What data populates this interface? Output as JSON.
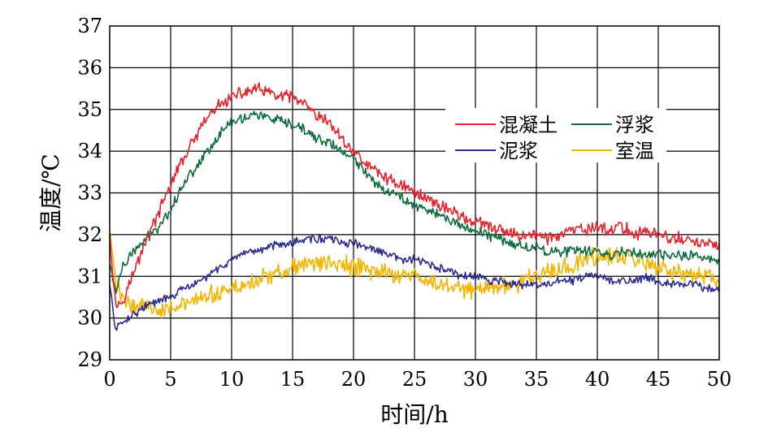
{
  "chart_data": {
    "type": "line",
    "xlabel": "时间/h",
    "ylabel": "温度/℃",
    "xlim": [
      0,
      50
    ],
    "ylim": [
      29,
      37
    ],
    "xticks": [
      "0",
      "5",
      "10",
      "15",
      "20",
      "25",
      "30",
      "35",
      "40",
      "45",
      "50"
    ],
    "yticks": [
      "29",
      "30",
      "31",
      "32",
      "33",
      "34",
      "35",
      "36",
      "37"
    ],
    "grid": true,
    "legend_position": "top-right",
    "noise_level": "high",
    "series": [
      {
        "name": "混凝土",
        "color": "#e8202a",
        "x": [
          0,
          0.5,
          1,
          2,
          3,
          4,
          5,
          6,
          7,
          8,
          9,
          10,
          11,
          12,
          13,
          14,
          15,
          16,
          17,
          18,
          19,
          20,
          21,
          22,
          23,
          24,
          25,
          26,
          27,
          28,
          29,
          30,
          31,
          32,
          33,
          34,
          35,
          36,
          37,
          38,
          39,
          40,
          41,
          42,
          43,
          44,
          45,
          46,
          47,
          48,
          49,
          50
        ],
        "values": [
          32.0,
          30.3,
          30.4,
          31.1,
          31.9,
          32.5,
          33.2,
          33.8,
          34.3,
          34.8,
          35.1,
          35.3,
          35.4,
          35.5,
          35.4,
          35.3,
          35.3,
          35.1,
          34.8,
          34.7,
          34.3,
          34.0,
          33.7,
          33.5,
          33.3,
          33.2,
          33.0,
          32.9,
          32.7,
          32.6,
          32.4,
          32.3,
          32.2,
          32.1,
          32.0,
          32.0,
          32.0,
          31.9,
          32.0,
          32.1,
          32.1,
          32.2,
          32.1,
          32.2,
          32.0,
          32.1,
          32.0,
          31.9,
          31.9,
          31.8,
          31.8,
          31.7
        ]
      },
      {
        "name": "浮浆",
        "color": "#0b6b3a",
        "x": [
          0,
          0.5,
          1,
          2,
          3,
          4,
          5,
          6,
          7,
          8,
          9,
          10,
          11,
          12,
          13,
          14,
          15,
          16,
          17,
          18,
          19,
          20,
          21,
          22,
          23,
          24,
          25,
          26,
          27,
          28,
          29,
          30,
          31,
          32,
          33,
          34,
          35,
          36,
          37,
          38,
          39,
          40,
          41,
          42,
          43,
          44,
          45,
          46,
          47,
          48,
          49,
          50
        ],
        "values": [
          31.3,
          30.6,
          31.2,
          31.6,
          31.9,
          32.2,
          32.6,
          33.2,
          33.6,
          34.0,
          34.4,
          34.7,
          34.8,
          34.9,
          34.8,
          34.7,
          34.6,
          34.5,
          34.3,
          34.2,
          34.0,
          33.8,
          33.5,
          33.2,
          33.0,
          32.9,
          32.7,
          32.6,
          32.5,
          32.3,
          32.2,
          32.1,
          32.0,
          31.9,
          31.8,
          31.7,
          31.7,
          31.6,
          31.6,
          31.6,
          31.6,
          31.6,
          31.5,
          31.6,
          31.6,
          31.5,
          31.5,
          31.5,
          31.5,
          31.5,
          31.4,
          31.4
        ]
      },
      {
        "name": "泥浆",
        "color": "#2b2a8f",
        "x": [
          0,
          0.5,
          1,
          2,
          3,
          4,
          5,
          6,
          7,
          8,
          9,
          10,
          11,
          12,
          13,
          14,
          15,
          16,
          17,
          18,
          19,
          20,
          21,
          22,
          23,
          24,
          25,
          26,
          27,
          28,
          29,
          30,
          31,
          32,
          33,
          34,
          35,
          36,
          37,
          38,
          39,
          40,
          41,
          42,
          43,
          44,
          45,
          46,
          47,
          48,
          49,
          50
        ],
        "values": [
          30.8,
          29.7,
          29.9,
          30.1,
          30.3,
          30.4,
          30.5,
          30.7,
          30.8,
          31.0,
          31.2,
          31.4,
          31.5,
          31.6,
          31.7,
          31.8,
          31.8,
          31.9,
          31.9,
          31.9,
          31.8,
          31.8,
          31.7,
          31.6,
          31.5,
          31.4,
          31.4,
          31.3,
          31.2,
          31.1,
          31.0,
          31.0,
          30.9,
          30.9,
          30.8,
          30.8,
          30.8,
          30.8,
          30.9,
          30.9,
          31.0,
          31.0,
          30.9,
          30.9,
          30.9,
          31.0,
          30.9,
          30.8,
          30.8,
          30.8,
          30.7,
          30.7
        ]
      },
      {
        "name": "室温",
        "color": "#f5b400",
        "x": [
          0,
          0.5,
          1,
          2,
          3,
          4,
          5,
          6,
          7,
          8,
          9,
          10,
          11,
          12,
          13,
          14,
          15,
          16,
          17,
          18,
          19,
          20,
          21,
          22,
          23,
          24,
          25,
          26,
          27,
          28,
          29,
          30,
          31,
          32,
          33,
          34,
          35,
          36,
          37,
          38,
          39,
          40,
          41,
          42,
          43,
          44,
          45,
          46,
          47,
          48,
          49,
          50
        ],
        "values": [
          32.1,
          30.8,
          30.5,
          30.3,
          30.3,
          30.2,
          30.3,
          30.3,
          30.4,
          30.5,
          30.6,
          30.7,
          30.8,
          30.9,
          31.0,
          31.1,
          31.2,
          31.3,
          31.3,
          31.3,
          31.3,
          31.2,
          31.2,
          31.1,
          31.1,
          31.0,
          31.0,
          30.9,
          30.8,
          30.8,
          30.7,
          30.7,
          30.7,
          30.8,
          30.8,
          30.9,
          31.0,
          31.1,
          31.2,
          31.3,
          31.4,
          31.5,
          31.5,
          31.4,
          31.4,
          31.3,
          31.2,
          31.1,
          31.0,
          31.0,
          31.0,
          30.9
        ]
      }
    ]
  }
}
